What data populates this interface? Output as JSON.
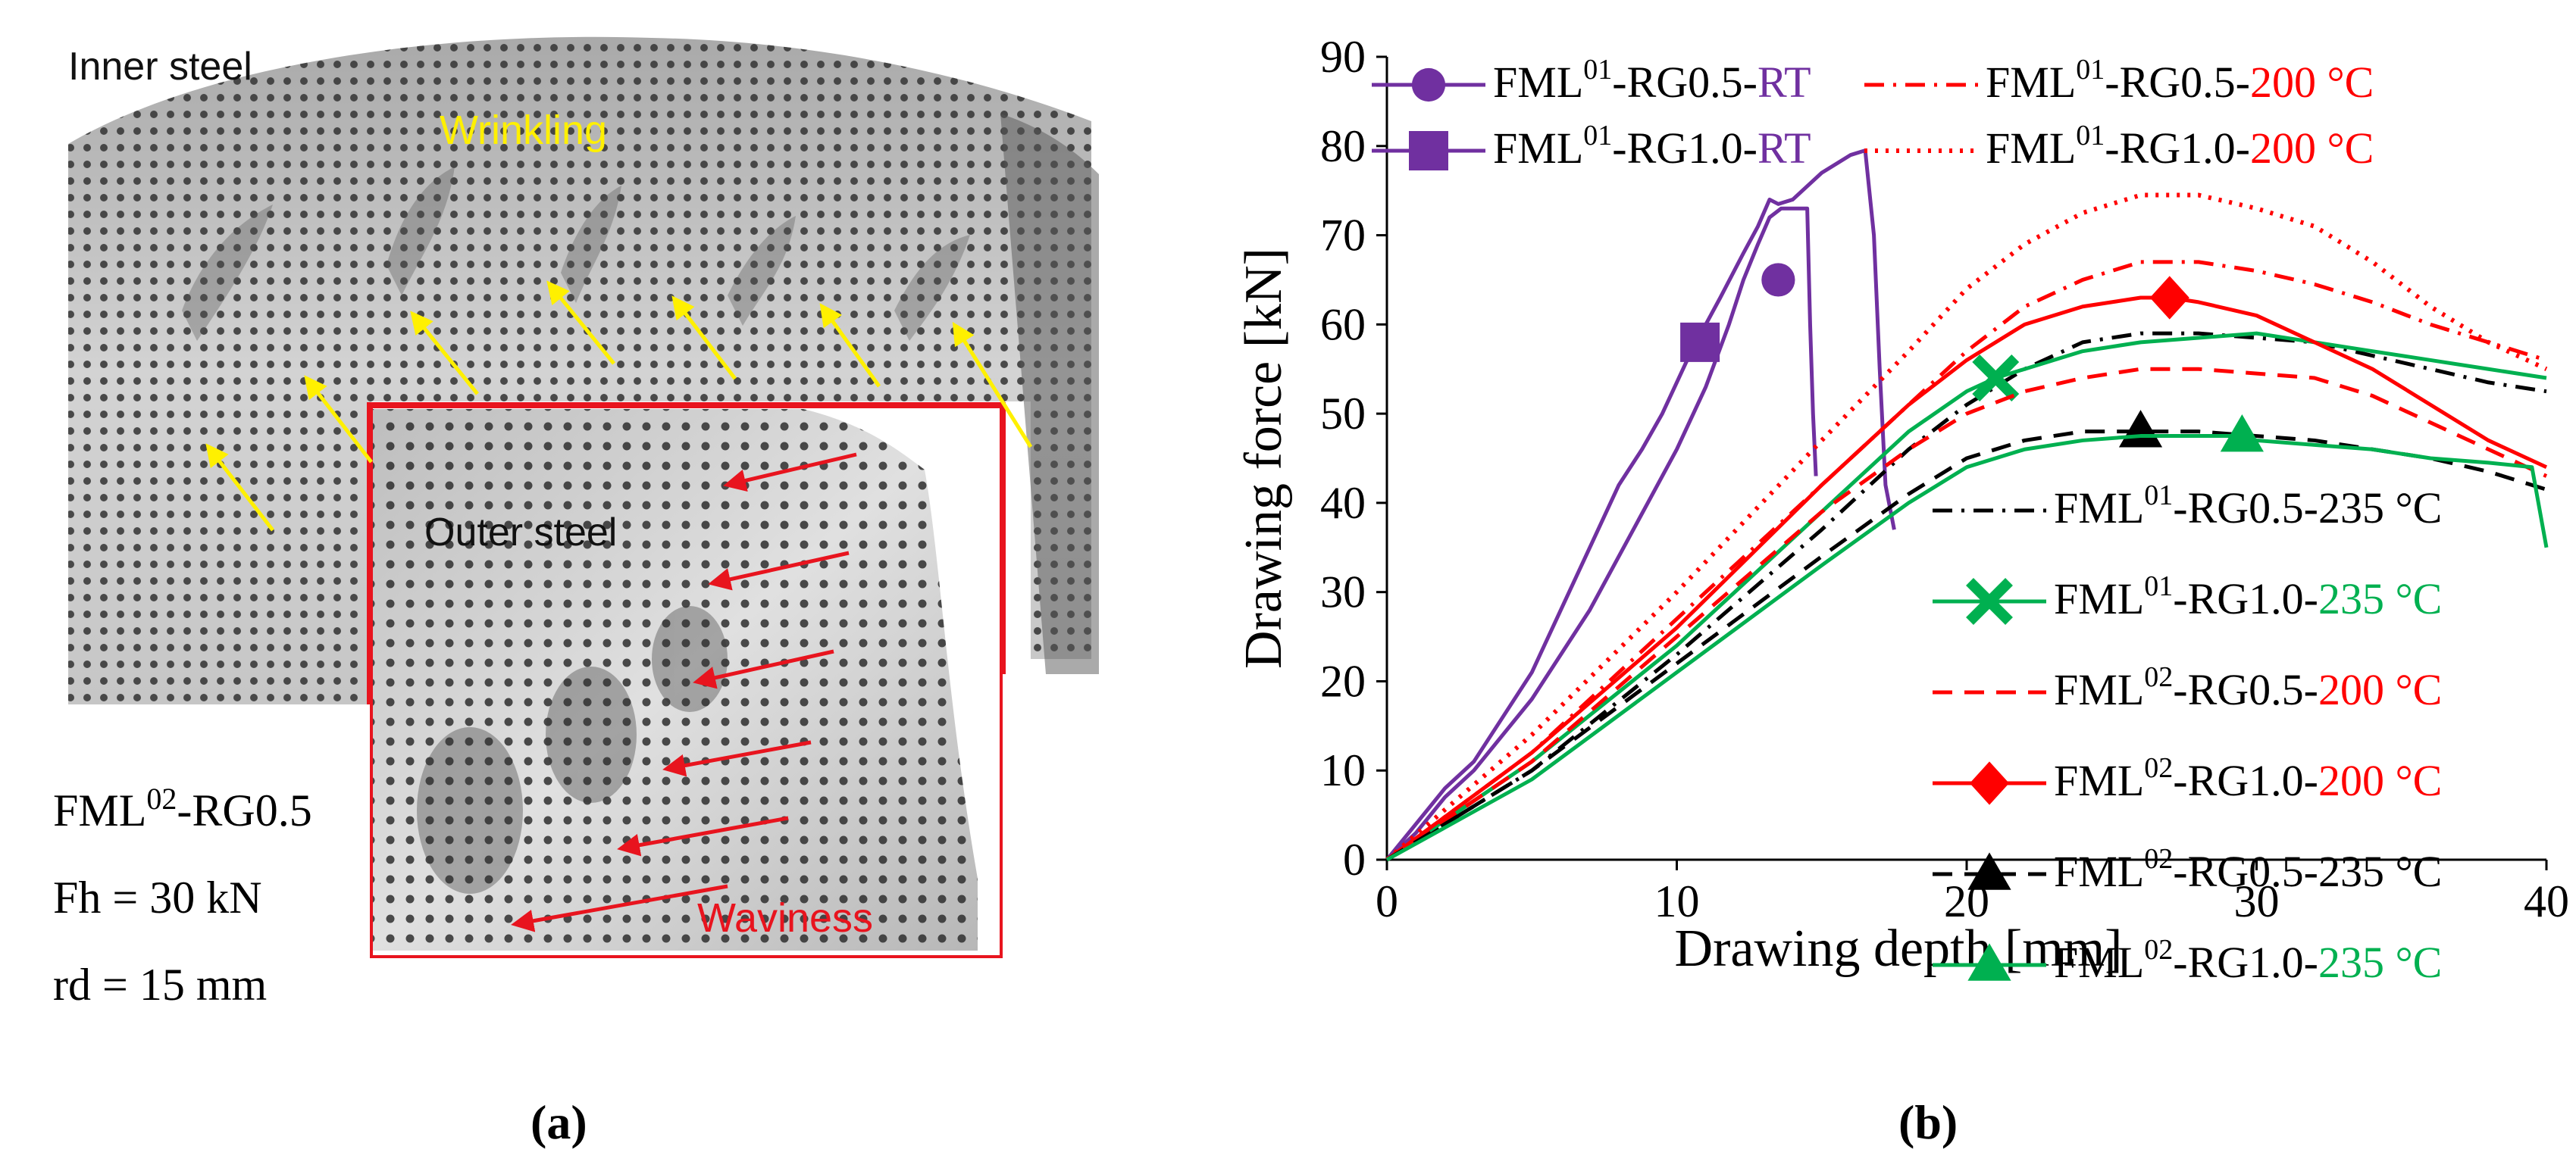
{
  "photo": {
    "label_inner": "Inner steel",
    "label_wrinkling": "Wrinkling",
    "label_outer": "Outer steel",
    "label_waviness": "Waviness",
    "spec_line1": "FML02-RG0.5",
    "spec_line2": "Fh = 30 kN",
    "spec_line3": "rd = 15 mm",
    "colors": {
      "wrinkling_arrow": "#FFF000",
      "waviness_arrow": "#E8141E",
      "inset_frame": "#E8141E"
    }
  },
  "captions": {
    "a": "(a)",
    "b": "(b)"
  },
  "chart_data": {
    "type": "line",
    "title": "",
    "xlabel": "Drawing depth [mm]",
    "ylabel": "Drawing force [kN]",
    "xlim": [
      0,
      40
    ],
    "ylim": [
      0,
      90
    ],
    "xticks": [
      0,
      10,
      20,
      30,
      40
    ],
    "yticks": [
      0,
      10,
      20,
      30,
      40,
      50,
      60,
      70,
      80,
      90
    ],
    "series": [
      {
        "name": "FML01-RG0.5-RT",
        "base": "FML",
        "sup": "01",
        "mid": "-RG0.5-",
        "cond": "RT",
        "color": "#7030A0",
        "cond_color": "#7030A0",
        "dash": "solid",
        "marker": "circle",
        "marker_at": [
          13.5,
          65
        ],
        "x": [
          0,
          1,
          2,
          3,
          4,
          5,
          6,
          7,
          8,
          9,
          10,
          11,
          11.8,
          12.3,
          12.8,
          13.2,
          13.6,
          14.0,
          14.5,
          14.6,
          14.7,
          14.8
        ],
        "y": [
          0,
          3,
          7,
          10,
          14,
          18,
          23,
          28,
          34,
          40,
          46,
          53,
          60,
          65,
          69,
          72,
          73,
          73,
          73,
          60,
          50,
          43
        ]
      },
      {
        "name": "FML01-RG1.0-RT",
        "base": "FML",
        "sup": "01",
        "mid": "-RG1.0-",
        "cond": "RT",
        "color": "#7030A0",
        "cond_color": "#7030A0",
        "dash": "solid",
        "marker": "square",
        "marker_at": [
          10.8,
          58
        ],
        "x": [
          0,
          1,
          2,
          3,
          4,
          5,
          6,
          7,
          8,
          8.8,
          9.5,
          10.5,
          11.5,
          12.3,
          12.8,
          13.2,
          13.5,
          14,
          15,
          16,
          16.5,
          16.8,
          17.0,
          17.2,
          17.5
        ],
        "y": [
          0,
          4,
          8,
          11,
          16,
          21,
          28,
          35,
          42,
          46,
          50,
          57,
          63,
          68,
          71,
          74,
          73.5,
          74,
          77,
          79,
          79.5,
          70,
          55,
          42,
          37
        ]
      },
      {
        "name": "FML01-RG0.5-200 °C",
        "base": "FML",
        "sup": "01",
        "mid": "-RG0.5-",
        "cond": "200 °C",
        "color": "#FF0000",
        "cond_color": "#FF0000",
        "dash": "dashdot",
        "marker": "none",
        "x": [
          0,
          5,
          10,
          15,
          18,
          20,
          22,
          24,
          26,
          28,
          30,
          32,
          34,
          36,
          38,
          40
        ],
        "y": [
          0,
          12,
          27,
          42,
          51,
          57,
          62,
          65,
          67,
          67,
          66,
          64.5,
          62.5,
          60,
          58,
          56
        ]
      },
      {
        "name": "FML01-RG1.0-200 °C",
        "base": "FML",
        "sup": "01",
        "mid": "-RG1.0-",
        "cond": "200 °C",
        "color": "#FF0000",
        "cond_color": "#FF0000",
        "dash": "dotted",
        "marker": "none",
        "x": [
          0,
          5,
          10,
          15,
          18,
          20,
          22,
          24,
          26,
          28,
          30,
          32,
          34,
          36,
          38,
          40
        ],
        "y": [
          0,
          14,
          30,
          47,
          57,
          64,
          69,
          72.5,
          74.5,
          74.5,
          73,
          71,
          67,
          62,
          58,
          55
        ]
      },
      {
        "name": "FML01-RG0.5-235 °C",
        "base": "FML",
        "sup": "01",
        "mid": "-RG0.5-",
        "cond": "235 °C",
        "color": "#000000",
        "cond_color": "#000000",
        "dash": "dashdot",
        "marker": "none",
        "x": [
          0,
          5,
          10,
          15,
          18,
          20,
          22,
          24,
          26,
          28,
          30,
          32,
          34,
          36,
          38,
          40
        ],
        "y": [
          0,
          10,
          23,
          37,
          46,
          51,
          55,
          58,
          59,
          59,
          58.5,
          58,
          56.5,
          55,
          53.5,
          52.5
        ]
      },
      {
        "name": "FML01-RG1.0-235 °C",
        "base": "FML",
        "sup": "01",
        "mid": "-RG1.0-",
        "cond": "235 °C",
        "color": "#00B050",
        "cond_color": "#00B050",
        "dash": "solid",
        "marker": "x",
        "marker_at": [
          21,
          54
        ],
        "x": [
          0,
          5,
          10,
          15,
          18,
          20,
          21,
          22,
          24,
          26,
          28,
          30,
          32,
          34,
          36,
          38,
          40
        ],
        "y": [
          0,
          11,
          24,
          39,
          48,
          52.5,
          54,
          55,
          57,
          58,
          58.5,
          59,
          58,
          57,
          56,
          55,
          54
        ]
      },
      {
        "name": "FML02-RG0.5-200 °C",
        "base": "FML",
        "sup": "02",
        "mid": "-RG0.5-",
        "cond": "200 °C",
        "color": "#FF0000",
        "cond_color": "#FF0000",
        "dash": "dashed",
        "marker": "none",
        "x": [
          0,
          5,
          10,
          15,
          18,
          20,
          22,
          24,
          26,
          28,
          30,
          32,
          34,
          36,
          38,
          40
        ],
        "y": [
          0,
          11,
          25,
          39,
          46,
          50,
          52.5,
          54,
          55,
          55,
          54.5,
          54,
          52,
          49,
          46,
          43
        ]
      },
      {
        "name": "FML02-RG1.0-200 °C",
        "base": "FML",
        "sup": "02",
        "mid": "-RG1.0-",
        "cond": "200 °C",
        "color": "#FF0000",
        "cond_color": "#FF0000",
        "dash": "solid",
        "marker": "diamond",
        "marker_at": [
          27,
          63
        ],
        "x": [
          0,
          5,
          10,
          15,
          18,
          20,
          22,
          24,
          26,
          27,
          28,
          30,
          32,
          34,
          36,
          38,
          40
        ],
        "y": [
          0,
          12,
          26,
          42,
          51,
          56,
          60,
          62,
          63,
          63,
          62.5,
          61,
          58,
          55,
          51,
          47,
          44
        ]
      },
      {
        "name": "FML02-RG0.5-235 °C",
        "base": "FML",
        "sup": "02",
        "mid": "-RG0.5-",
        "cond": "235 °C",
        "color": "#000000",
        "cond_color": "#000000",
        "dash": "dashed",
        "marker": "triangle",
        "marker_at": [
          26,
          48
        ],
        "x": [
          0,
          5,
          10,
          15,
          18,
          20,
          22,
          24,
          26,
          28,
          30,
          32,
          34,
          36,
          38,
          40
        ],
        "y": [
          0,
          10,
          22,
          34,
          41,
          45,
          47,
          48,
          48,
          48,
          47.5,
          47,
          46,
          45,
          43.5,
          41.5
        ]
      },
      {
        "name": "FML02-RG1.0-235 °C",
        "base": "FML",
        "sup": "02",
        "mid": "-RG1.0-",
        "cond": "235 °C",
        "color": "#00B050",
        "cond_color": "#00B050",
        "dash": "solid",
        "marker": "triangle",
        "marker_at": [
          29.5,
          47.5
        ],
        "x": [
          0,
          5,
          10,
          15,
          18,
          20,
          22,
          24,
          26,
          28,
          29.5,
          30,
          32,
          34,
          36,
          38,
          39.5,
          40
        ],
        "y": [
          0,
          9,
          21,
          33,
          40,
          44,
          46,
          47,
          47.5,
          47.5,
          47.5,
          47,
          46.5,
          46,
          45,
          44.5,
          44,
          35
        ]
      }
    ],
    "legend_upper": {
      "position": "top",
      "entries": [
        0,
        2,
        1,
        3
      ]
    },
    "legend_lower": {
      "position": "right",
      "entries": [
        4,
        5,
        6,
        7,
        8,
        9
      ]
    }
  }
}
